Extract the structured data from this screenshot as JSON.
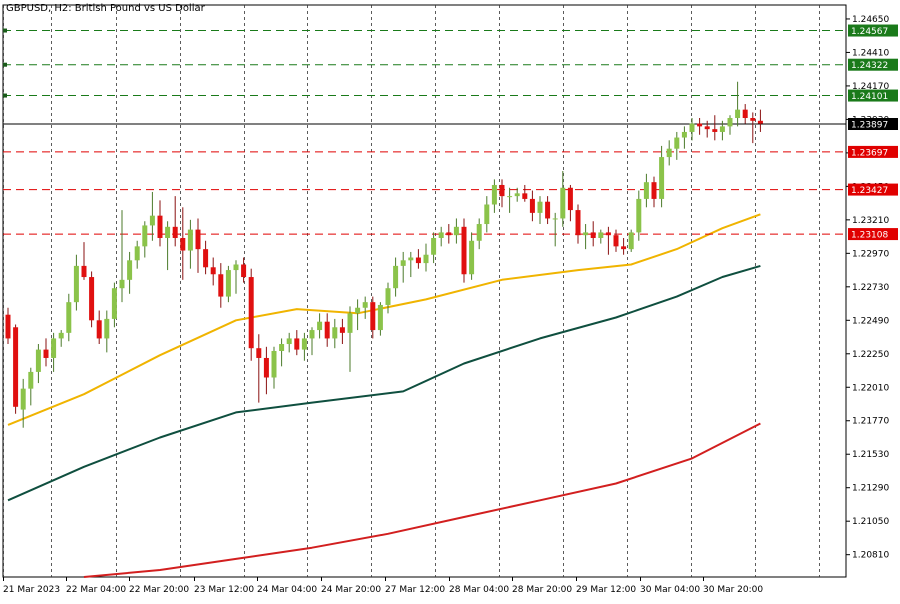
{
  "window": {
    "title": "GBPUSD, H2:  British Pound vs US Dollar"
  },
  "chart_data": {
    "type": "candlestick",
    "title": "GBPUSD, H2:  British Pound vs US Dollar",
    "symbol": "GBPUSD",
    "timeframe": "H2",
    "description": "British Pound vs US Dollar",
    "grid": true,
    "ylim": [
      1.2065,
      1.2475
    ],
    "y_ticks": [
      "1.24650",
      "1.24410",
      "1.24170",
      "1.23930",
      "1.23690",
      "1.23450",
      "1.23210",
      "1.22970",
      "1.22730",
      "1.22490",
      "1.22250",
      "1.22010",
      "1.21770",
      "1.21530",
      "1.21290",
      "1.21050",
      "1.20810"
    ],
    "x_ticks": [
      "21 Mar 2023",
      "22 Mar 04:00",
      "22 Mar 20:00",
      "23 Mar 12:00",
      "24 Mar 04:00",
      "24 Mar 20:00",
      "27 Mar 12:00",
      "28 Mar 04:00",
      "28 Mar 20:00",
      "29 Mar 12:00",
      "30 Mar 04:00",
      "30 Mar 20:00"
    ],
    "current_price": {
      "value": "1.23897",
      "color": "#000000"
    },
    "levels": [
      {
        "value": "1.24567",
        "style": "resistance",
        "color": "#1a7a1a"
      },
      {
        "value": "1.24322",
        "style": "resistance",
        "color": "#1a7a1a"
      },
      {
        "value": "1.24101",
        "style": "resistance",
        "color": "#1a7a1a"
      },
      {
        "value": "1.23697",
        "style": "support",
        "color": "#e00000"
      },
      {
        "value": "1.23427",
        "style": "support",
        "color": "#e00000"
      },
      {
        "value": "1.23108",
        "style": "support",
        "color": "#e00000"
      }
    ],
    "colors": {
      "bull": "#8bc34a",
      "bear": "#e01010",
      "wick": "#4b7a2a",
      "ma_fast": "#f0b400",
      "ma_mid": "#0f4f3f",
      "ma_slow": "#d21f1f"
    },
    "candles": [
      [
        1.2253,
        1.2258,
        1.2232,
        1.2236
      ],
      [
        1.2244,
        1.2246,
        1.2182,
        1.2187
      ],
      [
        1.2185,
        1.2207,
        1.2172,
        1.22
      ],
      [
        1.22,
        1.2215,
        1.2188,
        1.2212
      ],
      [
        1.2212,
        1.2232,
        1.2204,
        1.2228
      ],
      [
        1.2228,
        1.2236,
        1.2216,
        1.2222
      ],
      [
        1.2222,
        1.224,
        1.2212,
        1.2236
      ],
      [
        1.2236,
        1.2242,
        1.223,
        1.224
      ],
      [
        1.224,
        1.2268,
        1.2234,
        1.2262
      ],
      [
        1.2262,
        1.2296,
        1.2256,
        1.2288
      ],
      [
        1.2288,
        1.2305,
        1.2278,
        1.228
      ],
      [
        1.228,
        1.2284,
        1.2244,
        1.2249
      ],
      [
        1.2249,
        1.2256,
        1.2232,
        1.2236
      ],
      [
        1.2236,
        1.2256,
        1.2226,
        1.225
      ],
      [
        1.225,
        1.2276,
        1.2244,
        1.2272
      ],
      [
        1.2272,
        1.2328,
        1.2262,
        1.2278
      ],
      [
        1.2278,
        1.2298,
        1.2268,
        1.2292
      ],
      [
        1.2292,
        1.2306,
        1.2286,
        1.2302
      ],
      [
        1.2302,
        1.232,
        1.2294,
        1.2317
      ],
      [
        1.2317,
        1.2341,
        1.2306,
        1.2324
      ],
      [
        1.2324,
        1.2335,
        1.2302,
        1.2308
      ],
      [
        1.2308,
        1.232,
        1.2285,
        1.2316
      ],
      [
        1.2316,
        1.2338,
        1.2302,
        1.2308
      ],
      [
        1.2308,
        1.233,
        1.2278,
        1.2299
      ],
      [
        1.2299,
        1.2321,
        1.2286,
        1.2314
      ],
      [
        1.2314,
        1.2322,
        1.2283,
        1.23
      ],
      [
        1.23,
        1.2306,
        1.2282,
        1.2287
      ],
      [
        1.2287,
        1.2294,
        1.2274,
        1.2282
      ],
      [
        1.2282,
        1.229,
        1.2258,
        1.2266
      ],
      [
        1.2266,
        1.2288,
        1.2262,
        1.2285
      ],
      [
        1.2285,
        1.2292,
        1.2268,
        1.2289
      ],
      [
        1.2289,
        1.2294,
        1.2276,
        1.228
      ],
      [
        1.228,
        1.2286,
        1.222,
        1.2229
      ],
      [
        1.2229,
        1.2239,
        1.219,
        1.2222
      ],
      [
        1.2222,
        1.223,
        1.2196,
        1.2208
      ],
      [
        1.2208,
        1.223,
        1.22,
        1.2227
      ],
      [
        1.2227,
        1.2236,
        1.2216,
        1.2232
      ],
      [
        1.2232,
        1.224,
        1.2226,
        1.2236
      ],
      [
        1.2236,
        1.2242,
        1.2224,
        1.2228
      ],
      [
        1.2228,
        1.224,
        1.222,
        1.2236
      ],
      [
        1.2236,
        1.2244,
        1.2224,
        1.2242
      ],
      [
        1.2242,
        1.2254,
        1.2236,
        1.2248
      ],
      [
        1.2248,
        1.2254,
        1.223,
        1.2236
      ],
      [
        1.2236,
        1.225,
        1.2229,
        1.2244
      ],
      [
        1.2244,
        1.225,
        1.2232,
        1.224
      ],
      [
        1.224,
        1.2259,
        1.2212,
        1.2254
      ],
      [
        1.2254,
        1.2264,
        1.2242,
        1.2258
      ],
      [
        1.2258,
        1.2266,
        1.225,
        1.2262
      ],
      [
        1.2262,
        1.2266,
        1.2236,
        1.2242
      ],
      [
        1.2242,
        1.2262,
        1.2238,
        1.226
      ],
      [
        1.226,
        1.2276,
        1.2254,
        1.2272
      ],
      [
        1.2272,
        1.2294,
        1.2266,
        1.2288
      ],
      [
        1.2288,
        1.2298,
        1.2276,
        1.2292
      ],
      [
        1.2292,
        1.2298,
        1.228,
        1.2294
      ],
      [
        1.2294,
        1.23,
        1.2286,
        1.229
      ],
      [
        1.229,
        1.2304,
        1.2284,
        1.2296
      ],
      [
        1.2296,
        1.2312,
        1.229,
        1.2308
      ],
      [
        1.2308,
        1.2316,
        1.2302,
        1.2312
      ],
      [
        1.2312,
        1.2318,
        1.2304,
        1.231
      ],
      [
        1.231,
        1.2322,
        1.2304,
        1.2316
      ],
      [
        1.2316,
        1.2322,
        1.2276,
        1.2282
      ],
      [
        1.2282,
        1.2312,
        1.2278,
        1.2306
      ],
      [
        1.2306,
        1.2322,
        1.23,
        1.2318
      ],
      [
        1.2318,
        1.2338,
        1.2312,
        1.2332
      ],
      [
        1.2332,
        1.235,
        1.2326,
        1.2346
      ],
      [
        1.2346,
        1.235,
        1.233,
        1.2338
      ],
      [
        1.2338,
        1.2344,
        1.2326,
        1.2338
      ],
      [
        1.2338,
        1.2344,
        1.2334,
        1.234
      ],
      [
        1.234,
        1.2346,
        1.2334,
        1.2336
      ],
      [
        1.2336,
        1.2342,
        1.232,
        1.2326
      ],
      [
        1.2326,
        1.2338,
        1.2318,
        1.2334
      ],
      [
        1.2334,
        1.2338,
        1.2318,
        1.2322
      ],
      [
        1.2322,
        1.2326,
        1.2302,
        1.2322
      ],
      [
        1.2322,
        1.2356,
        1.2316,
        1.2344
      ],
      [
        1.2344,
        1.2346,
        1.232,
        1.2328
      ],
      [
        1.2328,
        1.2332,
        1.2304,
        1.231
      ],
      [
        1.231,
        1.2318,
        1.23,
        1.2312
      ],
      [
        1.2312,
        1.232,
        1.2302,
        1.2308
      ],
      [
        1.2308,
        1.2314,
        1.2304,
        1.2312
      ],
      [
        1.2312,
        1.2316,
        1.2296,
        1.231
      ],
      [
        1.231,
        1.2314,
        1.2298,
        1.2302
      ],
      [
        1.2302,
        1.2308,
        1.2296,
        1.23
      ],
      [
        1.23,
        1.2314,
        1.2298,
        1.2312
      ],
      [
        1.2312,
        1.2342,
        1.2306,
        1.2336
      ],
      [
        1.2336,
        1.2354,
        1.233,
        1.2348
      ],
      [
        1.2348,
        1.2352,
        1.233,
        1.2336
      ],
      [
        1.2336,
        1.2374,
        1.233,
        1.2366
      ],
      [
        1.2366,
        1.2378,
        1.236,
        1.2372
      ],
      [
        1.2372,
        1.2384,
        1.2364,
        1.238
      ],
      [
        1.238,
        1.2388,
        1.2372,
        1.2384
      ],
      [
        1.2384,
        1.2394,
        1.2378,
        1.239
      ],
      [
        1.239,
        1.2394,
        1.2382,
        1.2388
      ],
      [
        1.2388,
        1.2392,
        1.238,
        1.2386
      ],
      [
        1.2386,
        1.2396,
        1.2378,
        1.2384
      ],
      [
        1.2384,
        1.2392,
        1.2378,
        1.2388
      ],
      [
        1.2388,
        1.2396,
        1.2382,
        1.2394
      ],
      [
        1.2394,
        1.242,
        1.2388,
        1.24
      ],
      [
        1.24,
        1.2404,
        1.239,
        1.2394
      ],
      [
        1.2394,
        1.2398,
        1.2376,
        1.2392
      ],
      [
        1.2392,
        1.24,
        1.2384,
        1.239
      ]
    ],
    "ma_fast": [
      [
        0,
        1.2174
      ],
      [
        10,
        1.2196
      ],
      [
        20,
        1.2224
      ],
      [
        30,
        1.2249
      ],
      [
        38,
        1.2257
      ],
      [
        46,
        1.2254
      ],
      [
        55,
        1.2264
      ],
      [
        65,
        1.2278
      ],
      [
        75,
        1.2285
      ],
      [
        82,
        1.2289
      ],
      [
        88,
        1.23
      ],
      [
        94,
        1.2315
      ],
      [
        99,
        1.2325
      ]
    ],
    "ma_mid": [
      [
        0,
        1.212
      ],
      [
        10,
        1.2144
      ],
      [
        20,
        1.2165
      ],
      [
        30,
        1.2183
      ],
      [
        40,
        1.219
      ],
      [
        52,
        1.2198
      ],
      [
        60,
        1.2218
      ],
      [
        70,
        1.2236
      ],
      [
        80,
        1.2251
      ],
      [
        88,
        1.2266
      ],
      [
        94,
        1.228
      ],
      [
        99,
        1.2288
      ]
    ],
    "ma_slow": [
      [
        10,
        1.2065
      ],
      [
        20,
        1.207
      ],
      [
        30,
        1.2078
      ],
      [
        40,
        1.2086
      ],
      [
        50,
        1.2096
      ],
      [
        60,
        1.2108
      ],
      [
        70,
        1.212
      ],
      [
        80,
        1.2132
      ],
      [
        90,
        1.215
      ],
      [
        99,
        1.2175
      ]
    ]
  }
}
